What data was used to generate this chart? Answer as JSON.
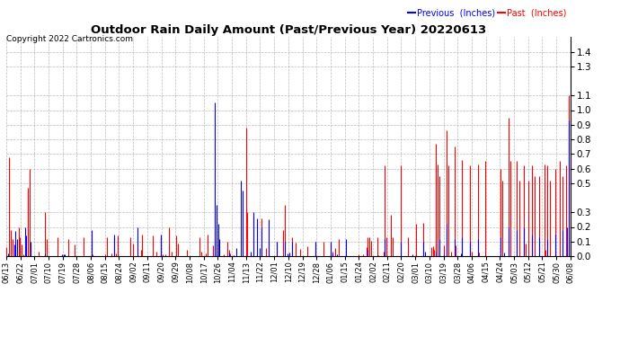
{
  "title": "Outdoor Rain Daily Amount (Past/Previous Year) 20220613",
  "copyright": "Copyright 2022 Cartronics.com",
  "legend_previous": "Previous  (Inches)",
  "legend_past": "Past  (Inches)",
  "color_previous": "blue",
  "color_past": "red",
  "background_color": "white",
  "grid_color": "#aaaaaa",
  "ylim": [
    0.0,
    1.5
  ],
  "yticks": [
    0.0,
    0.1,
    0.2,
    0.3,
    0.5,
    0.6,
    0.7,
    0.8,
    0.9,
    1.0,
    1.1,
    1.3,
    1.4
  ],
  "x_labels": [
    "06/13",
    "06/22",
    "07/01",
    "07/10",
    "07/19",
    "07/28",
    "08/06",
    "08/15",
    "08/24",
    "09/02",
    "09/11",
    "09/20",
    "09/29",
    "10/08",
    "10/17",
    "10/26",
    "11/04",
    "11/13",
    "11/22",
    "12/01",
    "12/10",
    "12/19",
    "12/28",
    "01/06",
    "01/15",
    "01/24",
    "02/02",
    "02/11",
    "02/20",
    "03/01",
    "03/10",
    "03/19",
    "03/28",
    "04/06",
    "04/15",
    "04/24",
    "05/03",
    "05/12",
    "05/21",
    "05/30",
    "06/08"
  ],
  "n_points": 366
}
